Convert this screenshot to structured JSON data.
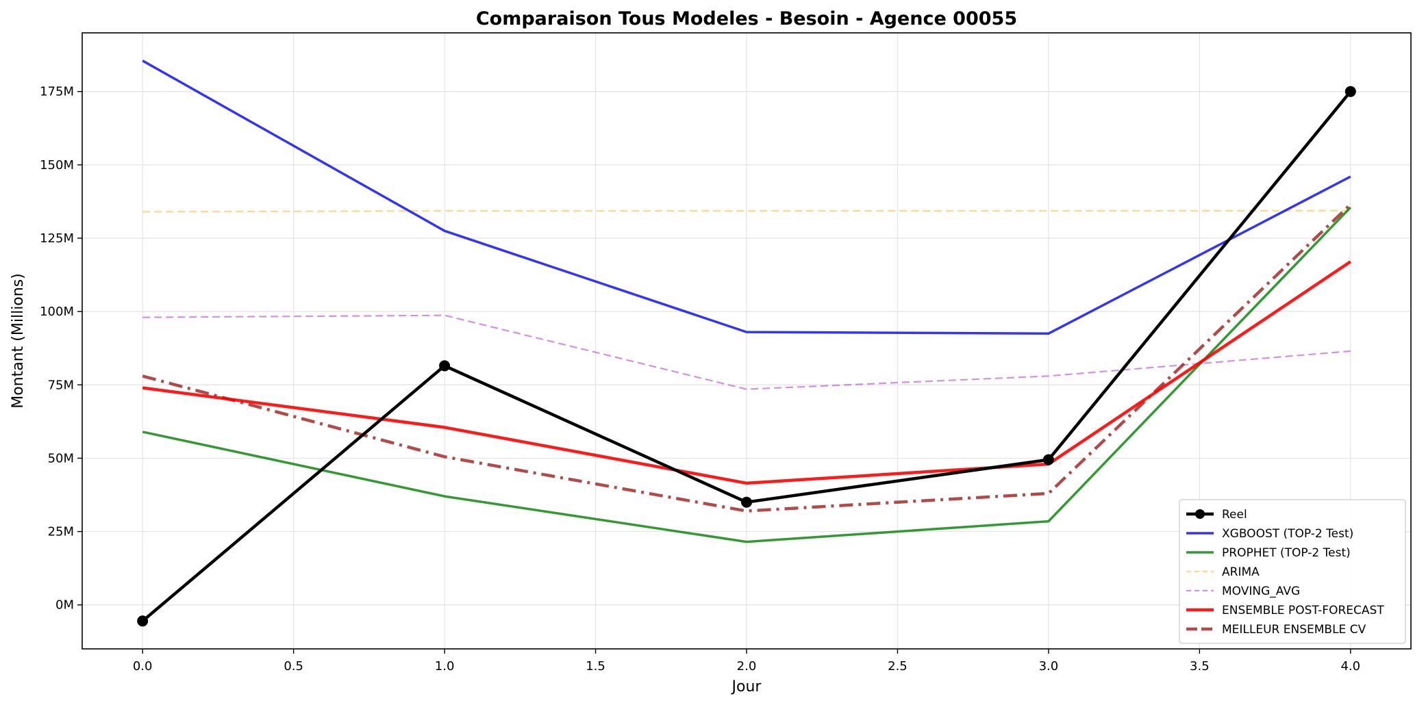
{
  "chart_data": {
    "type": "line",
    "title": "Comparaison Tous Modeles - Besoin - Agence 00055",
    "xlabel": "Jour",
    "ylabel": "Montant (Millions)",
    "x": [
      0,
      1,
      2,
      3,
      4
    ],
    "xlim": [
      -0.2,
      4.2
    ],
    "ylim": [
      -15,
      195
    ],
    "xticks": [
      0.0,
      0.5,
      1.0,
      1.5,
      2.0,
      2.5,
      3.0,
      3.5,
      4.0
    ],
    "xtick_labels": [
      "0.0",
      "0.5",
      "1.0",
      "1.5",
      "2.0",
      "2.5",
      "3.0",
      "3.5",
      "4.0"
    ],
    "yticks": [
      0,
      25,
      50,
      75,
      100,
      125,
      150,
      175
    ],
    "ytick_labels": [
      "0M",
      "25M",
      "50M",
      "75M",
      "100M",
      "125M",
      "150M",
      "175M"
    ],
    "grid": true,
    "legend_position": "bottom-right",
    "series": [
      {
        "name": "Reel",
        "values": [
          -5.5,
          81.5,
          35,
          49.5,
          175
        ],
        "color": "#000000",
        "style": "solid",
        "marker": true,
        "width": 4.5,
        "opacity": 1
      },
      {
        "name": "XGBOOST (TOP-2 Test)",
        "values": [
          185.5,
          127.5,
          93,
          92.5,
          146
        ],
        "color": "#0000ff",
        "style": "solid",
        "marker": false,
        "width": 3.5,
        "opacity": 0.8
      },
      {
        "name": "PROPHET (TOP-2 Test)",
        "values": [
          59,
          37,
          21.5,
          28.5,
          135.5
        ],
        "color": "#008000",
        "style": "solid",
        "marker": false,
        "width": 3.5,
        "opacity": 0.8
      },
      {
        "name": "ARIMA",
        "values": [
          134,
          134.3,
          134.3,
          134.3,
          134.4
        ],
        "color": "#ffa500",
        "style": "dashed",
        "marker": false,
        "width": 2.2,
        "opacity": 0.45
      },
      {
        "name": "MOVING_AVG",
        "values": [
          98,
          98.7,
          73.5,
          78,
          86.5
        ],
        "color": "#ba55d3",
        "style": "dashed",
        "marker": false,
        "width": 2.2,
        "opacity": 0.65
      },
      {
        "name": "ENSEMBLE POST-FORECAST",
        "values": [
          74,
          60.5,
          41.5,
          48,
          117
        ],
        "color": "#ff0000",
        "style": "solid",
        "marker": false,
        "width": 4.5,
        "opacity": 0.9
      },
      {
        "name": "MEILLEUR ENSEMBLE CV",
        "values": [
          78,
          50.5,
          32,
          38,
          136.5
        ],
        "color": "#a52a2a",
        "style": "dashdot",
        "marker": false,
        "width": 4.5,
        "opacity": 0.85
      }
    ]
  }
}
